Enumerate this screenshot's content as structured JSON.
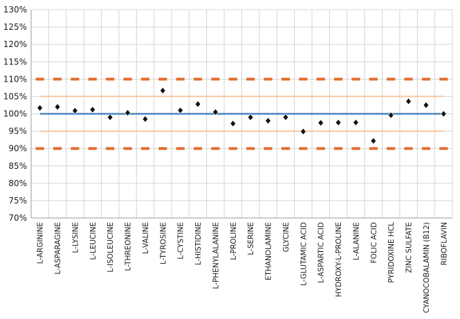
{
  "chart_data": {
    "type": "scatter",
    "title": "",
    "xlabel": "",
    "ylabel": "",
    "ylim": [
      70,
      130
    ],
    "yticks": [
      70,
      75,
      80,
      85,
      90,
      95,
      100,
      105,
      110,
      115,
      120,
      125,
      130
    ],
    "ytick_labels": [
      "70%",
      "75%",
      "80%",
      "85%",
      "90%",
      "95%",
      "100%",
      "105%",
      "110%",
      "115%",
      "120%",
      "125%",
      "130%"
    ],
    "grid": true,
    "legend": "none",
    "categories": [
      "L-ARGININE",
      "L-ASPARAGINE",
      "L-LYSINE",
      "L-LEUCINE",
      "L-ISOLEUCINE",
      "L-THREONINE",
      "L-VALINE",
      "L-TYROSINE",
      "L-CYSTINE",
      "L-HISTIDINE",
      "L-PHENYLALANINE",
      "L-PROLINE",
      "L-SERINE",
      "ETHANOLAMINE",
      "GLYCINE",
      "L-GLUTAMIC ACID",
      "L-ASPARTIC ACID",
      "HYDROXY-L-PROLINE",
      "L-ALANINE",
      "FOLIC ACID",
      "PYRIDOXINE HCL",
      "ZINC SULFATE",
      "CYANOCOBALAMIN (B12)",
      "RIBOFLAVIN"
    ],
    "series": [
      {
        "marker": "diamond",
        "color": "#111111",
        "values": [
          101.7,
          102.0,
          100.9,
          101.2,
          99.0,
          100.3,
          98.5,
          106.7,
          101.0,
          102.8,
          100.5,
          97.2,
          99.0,
          98.0,
          99.0,
          94.9,
          97.4,
          97.5,
          97.5,
          92.2,
          99.6,
          103.6,
          102.5,
          100.0
        ]
      }
    ],
    "reference_lines": [
      {
        "value": 100,
        "style": "solid",
        "color": "#4a86c0"
      },
      {
        "value": 105,
        "style": "solid",
        "color": "#f6c69e"
      },
      {
        "value": 95,
        "style": "solid",
        "color": "#f6c69e"
      },
      {
        "value": 110,
        "style": "dashed",
        "color": "#e36c2d"
      },
      {
        "value": 90,
        "style": "dashed",
        "color": "#e36c2d"
      }
    ],
    "colors": {
      "grid": "#d4d4d4",
      "axis": "#9a9a9a"
    }
  }
}
